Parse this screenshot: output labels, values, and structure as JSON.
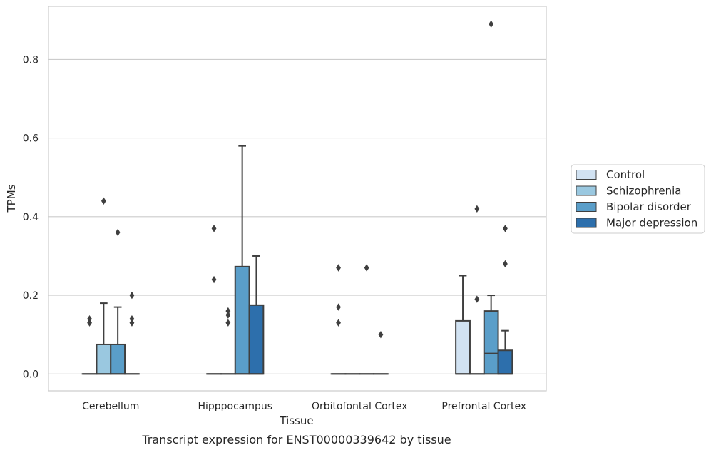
{
  "chart_data": {
    "type": "box",
    "caption": "Transcript expression for ENST00000339642 by tissue",
    "xlabel": "Tissue",
    "ylabel": "TPMs",
    "ylim": [
      -0.043,
      0.935
    ],
    "yticks": [
      0.0,
      0.2,
      0.4,
      0.6,
      0.8
    ],
    "ytick_labels": [
      "0.0",
      "0.2",
      "0.4",
      "0.6",
      "0.8"
    ],
    "grid": "horizontal",
    "legend_position": "right",
    "categories": [
      "Cerebellum",
      "Hipppocampus",
      "Orbitofontal Cortex",
      "Prefrontal Cortex"
    ],
    "series": [
      {
        "name": "Control",
        "color": "#d1e2f2",
        "boxes": [
          {
            "q1": 0.0,
            "median": 0.0,
            "q3": 0.0,
            "whislo": 0.0,
            "whishi": 0.0,
            "fliers": [
              0.13,
              0.14
            ]
          },
          {
            "q1": 0.0,
            "median": 0.0,
            "q3": 0.0,
            "whislo": 0.0,
            "whishi": 0.0,
            "fliers": [
              0.24,
              0.37
            ]
          },
          {
            "q1": 0.0,
            "median": 0.0,
            "q3": 0.0,
            "whislo": 0.0,
            "whishi": 0.0,
            "fliers": [
              0.13,
              0.17,
              0.27
            ]
          },
          {
            "q1": 0.0,
            "median": 0.0,
            "q3": 0.135,
            "whislo": 0.0,
            "whishi": 0.25,
            "fliers": []
          }
        ]
      },
      {
        "name": "Schizophrenia",
        "color": "#9ac8e0",
        "boxes": [
          {
            "q1": 0.0,
            "median": 0.0,
            "q3": 0.075,
            "whislo": 0.0,
            "whishi": 0.18,
            "fliers": [
              0.44
            ]
          },
          {
            "q1": 0.0,
            "median": 0.0,
            "q3": 0.0,
            "whislo": 0.0,
            "whishi": 0.0,
            "fliers": [
              0.13,
              0.15,
              0.16
            ]
          },
          {
            "q1": 0.0,
            "median": 0.0,
            "q3": 0.0,
            "whislo": 0.0,
            "whishi": 0.0,
            "fliers": []
          },
          {
            "q1": 0.0,
            "median": 0.0,
            "q3": 0.0,
            "whislo": 0.0,
            "whishi": 0.0,
            "fliers": [
              0.19,
              0.42
            ]
          }
        ]
      },
      {
        "name": "Bipolar disorder",
        "color": "#5a9ec9",
        "boxes": [
          {
            "q1": 0.0,
            "median": 0.0,
            "q3": 0.075,
            "whislo": 0.0,
            "whishi": 0.17,
            "fliers": [
              0.36
            ]
          },
          {
            "q1": 0.0,
            "median": 0.0,
            "q3": 0.273,
            "whislo": 0.0,
            "whishi": 0.58,
            "fliers": []
          },
          {
            "q1": 0.0,
            "median": 0.0,
            "q3": 0.0,
            "whislo": 0.0,
            "whishi": 0.0,
            "fliers": [
              0.27
            ]
          },
          {
            "q1": 0.0,
            "median": 0.052,
            "q3": 0.16,
            "whislo": 0.0,
            "whishi": 0.2,
            "fliers": [
              0.89
            ]
          }
        ]
      },
      {
        "name": "Major depression",
        "color": "#2d6fac",
        "boxes": [
          {
            "q1": 0.0,
            "median": 0.0,
            "q3": 0.0,
            "whislo": 0.0,
            "whishi": 0.0,
            "fliers": [
              0.13,
              0.14,
              0.2
            ]
          },
          {
            "q1": 0.0,
            "median": 0.0,
            "q3": 0.175,
            "whislo": 0.0,
            "whishi": 0.3,
            "fliers": []
          },
          {
            "q1": 0.0,
            "median": 0.0,
            "q3": 0.0,
            "whislo": 0.0,
            "whishi": 0.0,
            "fliers": [
              0.1
            ]
          },
          {
            "q1": 0.0,
            "median": 0.0,
            "q3": 0.06,
            "whislo": 0.0,
            "whishi": 0.11,
            "fliers": [
              0.28,
              0.37
            ]
          }
        ]
      }
    ]
  },
  "colors": {
    "frame": "#cccccc",
    "grid": "#cccccc",
    "box_edge": "#3f3f3f",
    "text": "#262626"
  }
}
